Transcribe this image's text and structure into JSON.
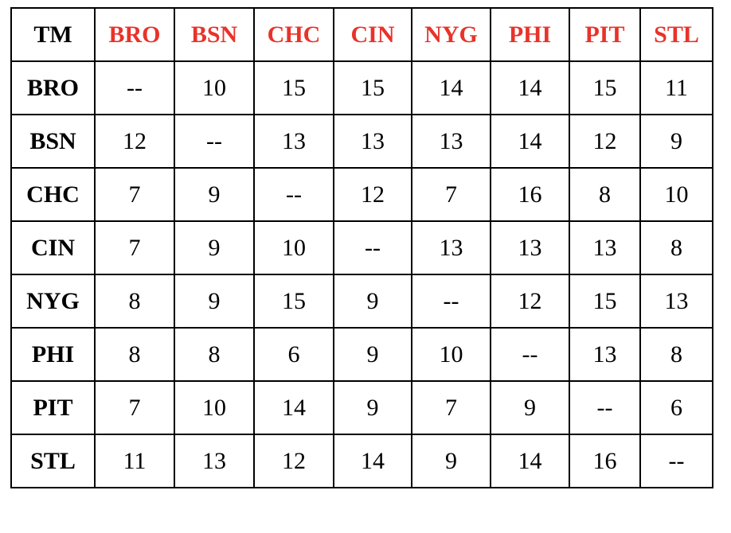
{
  "table": {
    "corner_label": "TM",
    "header_color": "#e8332a",
    "columns": [
      "BRO",
      "BSN",
      "CHC",
      "CIN",
      "NYG",
      "PHI",
      "PIT",
      "STL"
    ],
    "rows": [
      {
        "team": "BRO",
        "cells": [
          "--",
          "10",
          "15",
          "15",
          "14",
          "14",
          "15",
          "11"
        ]
      },
      {
        "team": "BSN",
        "cells": [
          "12",
          "--",
          "13",
          "13",
          "13",
          "14",
          "12",
          "9"
        ]
      },
      {
        "team": "CHC",
        "cells": [
          "7",
          "9",
          "--",
          "12",
          "7",
          "16",
          "8",
          "10"
        ]
      },
      {
        "team": "CIN",
        "cells": [
          "7",
          "9",
          "10",
          "--",
          "13",
          "13",
          "13",
          "8"
        ]
      },
      {
        "team": "NYG",
        "cells": [
          "8",
          "9",
          "15",
          "9",
          "--",
          "12",
          "15",
          "13"
        ]
      },
      {
        "team": "PHI",
        "cells": [
          "8",
          "8",
          "6",
          "9",
          "10",
          "--",
          "13",
          "8"
        ]
      },
      {
        "team": "PIT",
        "cells": [
          "7",
          "10",
          "14",
          "9",
          "7",
          "9",
          "--",
          "6"
        ]
      },
      {
        "team": "STL",
        "cells": [
          "11",
          "13",
          "12",
          "14",
          "9",
          "14",
          "16",
          "--"
        ]
      }
    ]
  }
}
